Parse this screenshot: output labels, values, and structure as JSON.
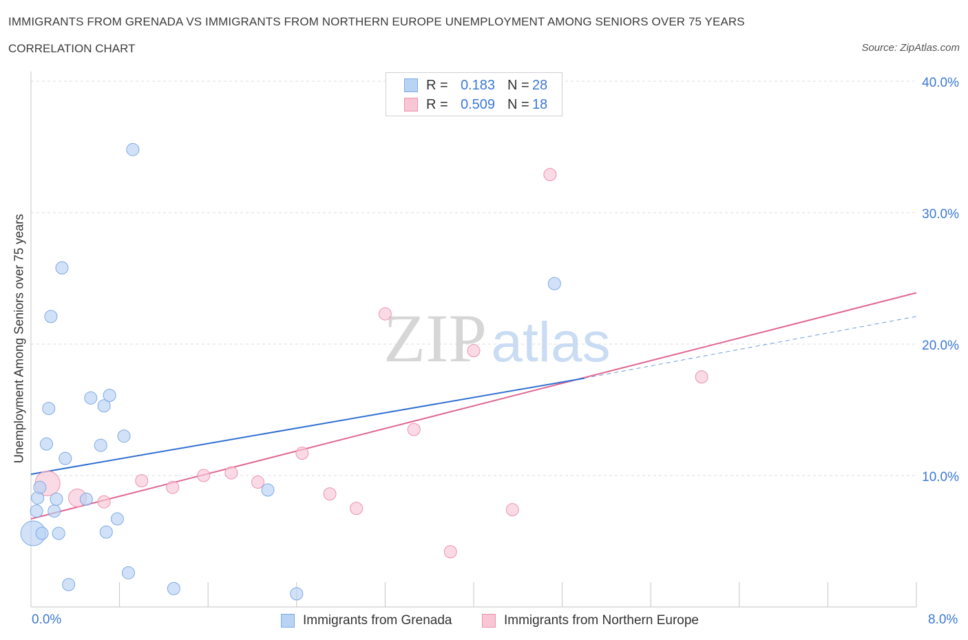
{
  "header": {
    "title": "IMMIGRANTS FROM GRENADA VS IMMIGRANTS FROM NORTHERN EUROPE UNEMPLOYMENT AMONG SENIORS OVER 75 YEARS",
    "subtitle": "CORRELATION CHART",
    "source": "Source: ZipAtlas.com"
  },
  "watermark": {
    "zip": "ZIP",
    "atlas": "atlas"
  },
  "legend": {
    "rows": [
      {
        "r_label": "R =",
        "r_value": "0.183",
        "n_label": "N =",
        "n_value": "28"
      },
      {
        "r_label": "R =",
        "r_value": "0.509",
        "n_label": "N =",
        "n_value": "18"
      }
    ]
  },
  "bottom_legend": {
    "grenada": "Immigrants from Grenada",
    "northern_europe": "Immigrants from Northern Europe"
  },
  "axes": {
    "x_min_label": "0.0%",
    "x_max_label": "8.0%",
    "y_tick_labels": [
      "40.0%",
      "30.0%",
      "20.0%",
      "10.0%"
    ],
    "y_title": "Unemployment Among Seniors over 75 years"
  },
  "chart_data": {
    "type": "scatter",
    "title": "IMMIGRANTS FROM GRENADA VS IMMIGRANTS FROM NORTHERN EUROPE UNEMPLOYMENT AMONG SENIORS OVER 75 YEARS",
    "xlabel": "",
    "ylabel": "Unemployment Among Seniors over 75 years",
    "xlim": [
      0,
      8
    ],
    "ylim": [
      0,
      40
    ],
    "y_ticks": [
      10,
      20,
      30,
      40
    ],
    "colors": {
      "grenada_fill": "#b9d3f5",
      "grenada_stroke": "#7ea8e4",
      "grenada_line": "#2f6fd0",
      "ne_fill": "#f8c6d5",
      "ne_stroke": "#eb93ad",
      "ne_line": "#e06690",
      "grid": "#dcdcdc",
      "accent": "#3b78d4"
    },
    "series": [
      {
        "name": "Immigrants from Grenada",
        "R": 0.183,
        "N": 28,
        "trend": {
          "x0": 0.0,
          "y0": 10.1,
          "x1": 5.0,
          "y1": 17.4,
          "dash_x1": 8.0,
          "dash_y1": 22.1
        },
        "points": [
          {
            "x": 0.02,
            "y": 5.6,
            "size": "large"
          },
          {
            "x": 0.05,
            "y": 7.3
          },
          {
            "x": 0.06,
            "y": 8.3
          },
          {
            "x": 0.08,
            "y": 9.1
          },
          {
            "x": 0.1,
            "y": 5.6
          },
          {
            "x": 0.14,
            "y": 12.4
          },
          {
            "x": 0.16,
            "y": 15.1
          },
          {
            "x": 0.18,
            "y": 22.1
          },
          {
            "x": 0.21,
            "y": 7.3
          },
          {
            "x": 0.23,
            "y": 8.2
          },
          {
            "x": 0.25,
            "y": 5.6
          },
          {
            "x": 0.28,
            "y": 25.8
          },
          {
            "x": 0.31,
            "y": 11.3
          },
          {
            "x": 0.34,
            "y": 1.7
          },
          {
            "x": 0.5,
            "y": 8.2
          },
          {
            "x": 0.54,
            "y": 15.9
          },
          {
            "x": 0.63,
            "y": 12.3
          },
          {
            "x": 0.66,
            "y": 15.3
          },
          {
            "x": 0.68,
            "y": 5.7
          },
          {
            "x": 0.71,
            "y": 16.1
          },
          {
            "x": 0.78,
            "y": 6.7
          },
          {
            "x": 0.84,
            "y": 13.0
          },
          {
            "x": 0.88,
            "y": 2.6
          },
          {
            "x": 0.92,
            "y": 34.8
          },
          {
            "x": 1.29,
            "y": 1.4
          },
          {
            "x": 2.14,
            "y": 8.9
          },
          {
            "x": 2.4,
            "y": 1.0
          },
          {
            "x": 4.73,
            "y": 24.6
          }
        ]
      },
      {
        "name": "Immigrants from Northern Europe",
        "R": 0.509,
        "N": 18,
        "trend": {
          "x0": 0.0,
          "y0": 6.7,
          "x1": 8.0,
          "y1": 23.9
        },
        "points": [
          {
            "x": 0.15,
            "y": 9.4,
            "size": "large"
          },
          {
            "x": 0.42,
            "y": 8.3,
            "size": "medium"
          },
          {
            "x": 0.66,
            "y": 8.0
          },
          {
            "x": 1.0,
            "y": 9.6
          },
          {
            "x": 1.28,
            "y": 9.1
          },
          {
            "x": 1.56,
            "y": 10.0
          },
          {
            "x": 1.81,
            "y": 10.2
          },
          {
            "x": 2.05,
            "y": 9.5
          },
          {
            "x": 2.45,
            "y": 11.7
          },
          {
            "x": 2.7,
            "y": 8.6
          },
          {
            "x": 2.94,
            "y": 7.5
          },
          {
            "x": 3.2,
            "y": 22.3
          },
          {
            "x": 3.46,
            "y": 13.5
          },
          {
            "x": 3.79,
            "y": 4.2
          },
          {
            "x": 4.0,
            "y": 19.5
          },
          {
            "x": 4.35,
            "y": 7.4
          },
          {
            "x": 4.69,
            "y": 32.9
          },
          {
            "x": 6.06,
            "y": 17.5
          }
        ]
      }
    ]
  }
}
